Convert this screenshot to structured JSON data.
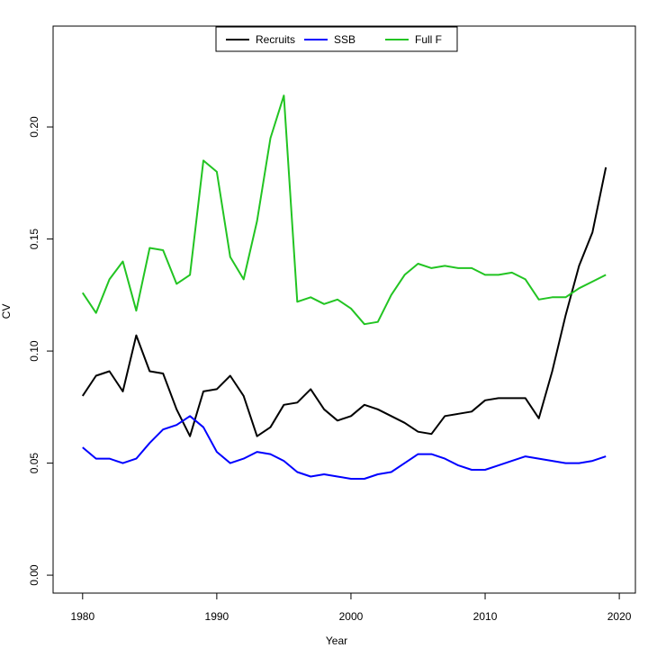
{
  "chart_data": {
    "type": "line",
    "title": "",
    "xlabel": "Year",
    "ylabel": "CV",
    "xlim": [
      1977.8,
      2021.2
    ],
    "ylim": [
      -0.008,
      0.245
    ],
    "x_ticks": [
      1980,
      1990,
      2000,
      2010,
      2020
    ],
    "y_ticks": [
      0.0,
      0.05,
      0.1,
      0.15,
      0.2
    ],
    "y_tick_labels": [
      "0.00",
      "0.05",
      "0.10",
      "0.15",
      "0.20"
    ],
    "grid": false,
    "legend_position": "top",
    "x": [
      1980,
      1981,
      1982,
      1983,
      1984,
      1985,
      1986,
      1987,
      1988,
      1989,
      1990,
      1991,
      1992,
      1993,
      1994,
      1995,
      1996,
      1997,
      1998,
      1999,
      2000,
      2001,
      2002,
      2003,
      2004,
      2005,
      2006,
      2007,
      2008,
      2009,
      2010,
      2011,
      2012,
      2013,
      2014,
      2015,
      2016,
      2017,
      2018,
      2019
    ],
    "series": [
      {
        "name": "Recruits",
        "color": "#000000",
        "values": [
          0.08,
          0.089,
          0.091,
          0.082,
          0.107,
          0.091,
          0.09,
          0.074,
          0.062,
          0.082,
          0.083,
          0.089,
          0.08,
          0.062,
          0.066,
          0.076,
          0.077,
          0.083,
          0.074,
          0.069,
          0.071,
          0.076,
          0.074,
          0.071,
          0.068,
          0.064,
          0.063,
          0.071,
          0.072,
          0.073,
          0.078,
          0.079,
          0.079,
          0.079,
          0.07,
          0.091,
          0.116,
          0.138,
          0.153,
          0.182
        ]
      },
      {
        "name": "SSB",
        "color": "#0000ff",
        "values": [
          0.057,
          0.052,
          0.052,
          0.05,
          0.052,
          0.059,
          0.065,
          0.067,
          0.071,
          0.066,
          0.055,
          0.05,
          0.052,
          0.055,
          0.054,
          0.051,
          0.046,
          0.044,
          0.045,
          0.044,
          0.043,
          0.043,
          0.045,
          0.046,
          0.05,
          0.054,
          0.054,
          0.052,
          0.049,
          0.047,
          0.047,
          0.049,
          0.051,
          0.053,
          0.052,
          0.051,
          0.05,
          0.05,
          0.051,
          0.053
        ]
      },
      {
        "name": "Full F",
        "color": "#22c422",
        "values": [
          0.126,
          0.117,
          0.132,
          0.14,
          0.118,
          0.146,
          0.145,
          0.13,
          0.134,
          0.185,
          0.18,
          0.142,
          0.132,
          0.158,
          0.195,
          0.214,
          0.122,
          0.124,
          0.121,
          0.123,
          0.119,
          0.112,
          0.113,
          0.125,
          0.134,
          0.139,
          0.137,
          0.138,
          0.137,
          0.137,
          0.134,
          0.134,
          0.135,
          0.132,
          0.123,
          0.124,
          0.124,
          0.128,
          0.131,
          0.134
        ]
      }
    ]
  }
}
